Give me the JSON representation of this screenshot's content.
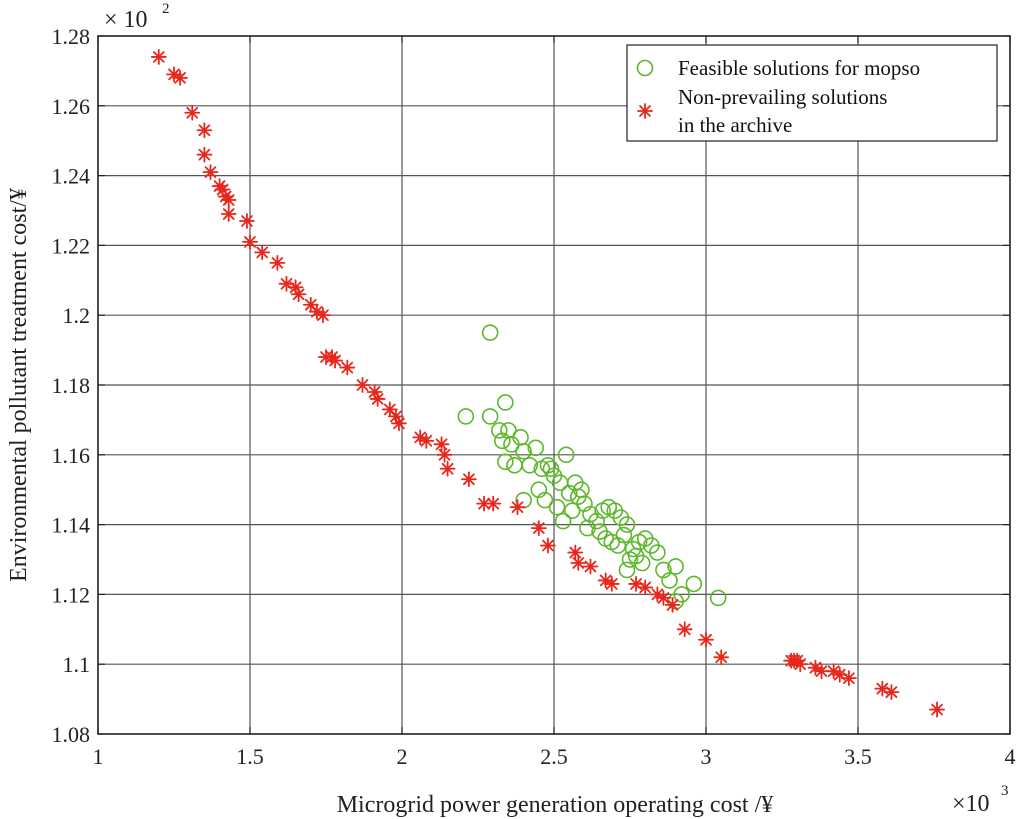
{
  "chart_data": {
    "type": "scatter",
    "title": "",
    "xlabel": "Microgrid power generation operating cost /¥",
    "ylabel": "Environmental pollutant treatment cost/¥",
    "x_multiplier": "×10",
    "x_multiplier_exp": "3",
    "y_multiplier": "× 10",
    "y_multiplier_exp": "2",
    "xlim": [
      1,
      4
    ],
    "ylim": [
      1.08,
      1.28
    ],
    "xticks": [
      1,
      1.5,
      2,
      2.5,
      3,
      3.5,
      4
    ],
    "xtick_labels": [
      "1",
      "1.5",
      "2",
      "2.5",
      "3",
      "3.5",
      "4"
    ],
    "yticks": [
      1.08,
      1.1,
      1.12,
      1.14,
      1.16,
      1.18,
      1.2,
      1.22,
      1.24,
      1.26,
      1.28
    ],
    "ytick_labels": [
      "1.08",
      "1.1",
      "1.12",
      "1.14",
      "1.16",
      "1.18",
      "1.2",
      "1.22",
      "1.24",
      "1.26",
      "1.28"
    ],
    "grid": true,
    "legend_position": "top-right",
    "series": [
      {
        "name": "Feasible solutions for mopso",
        "marker": "circle",
        "color": "#5cb82a",
        "points": [
          [
            2.29,
            1.195
          ],
          [
            2.21,
            1.171
          ],
          [
            2.29,
            1.171
          ],
          [
            2.34,
            1.175
          ],
          [
            2.32,
            1.167
          ],
          [
            2.35,
            1.167
          ],
          [
            2.33,
            1.164
          ],
          [
            2.36,
            1.163
          ],
          [
            2.39,
            1.165
          ],
          [
            2.4,
            1.161
          ],
          [
            2.34,
            1.158
          ],
          [
            2.37,
            1.157
          ],
          [
            2.42,
            1.157
          ],
          [
            2.46,
            1.156
          ],
          [
            2.48,
            1.157
          ],
          [
            2.54,
            1.16
          ],
          [
            2.5,
            1.154
          ],
          [
            2.52,
            1.152
          ],
          [
            2.45,
            1.15
          ],
          [
            2.47,
            1.147
          ],
          [
            2.4,
            1.147
          ],
          [
            2.55,
            1.149
          ],
          [
            2.57,
            1.152
          ],
          [
            2.58,
            1.148
          ],
          [
            2.6,
            1.146
          ],
          [
            2.56,
            1.144
          ],
          [
            2.62,
            1.143
          ],
          [
            2.64,
            1.141
          ],
          [
            2.66,
            1.144
          ],
          [
            2.68,
            1.145
          ],
          [
            2.7,
            1.144
          ],
          [
            2.72,
            1.142
          ],
          [
            2.74,
            1.14
          ],
          [
            2.65,
            1.138
          ],
          [
            2.67,
            1.136
          ],
          [
            2.69,
            1.135
          ],
          [
            2.71,
            1.134
          ],
          [
            2.73,
            1.137
          ],
          [
            2.76,
            1.133
          ],
          [
            2.78,
            1.135
          ],
          [
            2.8,
            1.136
          ],
          [
            2.82,
            1.134
          ],
          [
            2.84,
            1.132
          ],
          [
            2.75,
            1.13
          ],
          [
            2.77,
            1.131
          ],
          [
            2.74,
            1.127
          ],
          [
            2.86,
            1.127
          ],
          [
            2.88,
            1.124
          ],
          [
            2.9,
            1.128
          ],
          [
            2.92,
            1.12
          ],
          [
            2.96,
            1.123
          ],
          [
            2.9,
            1.118
          ],
          [
            3.04,
            1.119
          ],
          [
            2.53,
            1.141
          ],
          [
            2.61,
            1.139
          ],
          [
            2.51,
            1.145
          ],
          [
            2.59,
            1.15
          ],
          [
            2.49,
            1.156
          ],
          [
            2.44,
            1.162
          ],
          [
            2.79,
            1.129
          ]
        ]
      },
      {
        "name": "Non-prevailing solutions in the archive",
        "marker": "asterisk",
        "color": "#e8261c",
        "points": [
          [
            1.2,
            1.274
          ],
          [
            1.25,
            1.269
          ],
          [
            1.27,
            1.268
          ],
          [
            1.31,
            1.258
          ],
          [
            1.35,
            1.253
          ],
          [
            1.35,
            1.246
          ],
          [
            1.37,
            1.241
          ],
          [
            1.4,
            1.237
          ],
          [
            1.41,
            1.236
          ],
          [
            1.42,
            1.234
          ],
          [
            1.43,
            1.233
          ],
          [
            1.43,
            1.229
          ],
          [
            1.49,
            1.227
          ],
          [
            1.5,
            1.221
          ],
          [
            1.54,
            1.218
          ],
          [
            1.59,
            1.215
          ],
          [
            1.62,
            1.209
          ],
          [
            1.65,
            1.208
          ],
          [
            1.66,
            1.206
          ],
          [
            1.7,
            1.203
          ],
          [
            1.72,
            1.201
          ],
          [
            1.74,
            1.2
          ],
          [
            1.75,
            1.188
          ],
          [
            1.77,
            1.188
          ],
          [
            1.78,
            1.187
          ],
          [
            1.82,
            1.185
          ],
          [
            1.87,
            1.18
          ],
          [
            1.91,
            1.178
          ],
          [
            1.92,
            1.176
          ],
          [
            1.96,
            1.173
          ],
          [
            1.98,
            1.171
          ],
          [
            1.99,
            1.169
          ],
          [
            2.06,
            1.165
          ],
          [
            2.08,
            1.164
          ],
          [
            2.13,
            1.163
          ],
          [
            2.14,
            1.16
          ],
          [
            2.15,
            1.156
          ],
          [
            2.22,
            1.153
          ],
          [
            2.27,
            1.146
          ],
          [
            2.3,
            1.146
          ],
          [
            2.38,
            1.145
          ],
          [
            2.45,
            1.139
          ],
          [
            2.48,
            1.134
          ],
          [
            2.57,
            1.132
          ],
          [
            2.58,
            1.129
          ],
          [
            2.62,
            1.128
          ],
          [
            2.67,
            1.124
          ],
          [
            2.69,
            1.123
          ],
          [
            2.77,
            1.123
          ],
          [
            2.8,
            1.122
          ],
          [
            2.84,
            1.12
          ],
          [
            2.86,
            1.119
          ],
          [
            2.89,
            1.117
          ],
          [
            2.93,
            1.11
          ],
          [
            3.0,
            1.107
          ],
          [
            3.05,
            1.102
          ],
          [
            3.28,
            1.101
          ],
          [
            3.29,
            1.101
          ],
          [
            3.3,
            1.101
          ],
          [
            3.31,
            1.1
          ],
          [
            3.36,
            1.099
          ],
          [
            3.38,
            1.098
          ],
          [
            3.42,
            1.098
          ],
          [
            3.44,
            1.097
          ],
          [
            3.47,
            1.096
          ],
          [
            3.58,
            1.093
          ],
          [
            3.61,
            1.092
          ],
          [
            3.76,
            1.087
          ]
        ]
      }
    ],
    "legend_lines": [
      [
        "Feasible solutions for mopso"
      ],
      [
        "Non-prevailing solutions",
        "in the archive"
      ]
    ]
  }
}
